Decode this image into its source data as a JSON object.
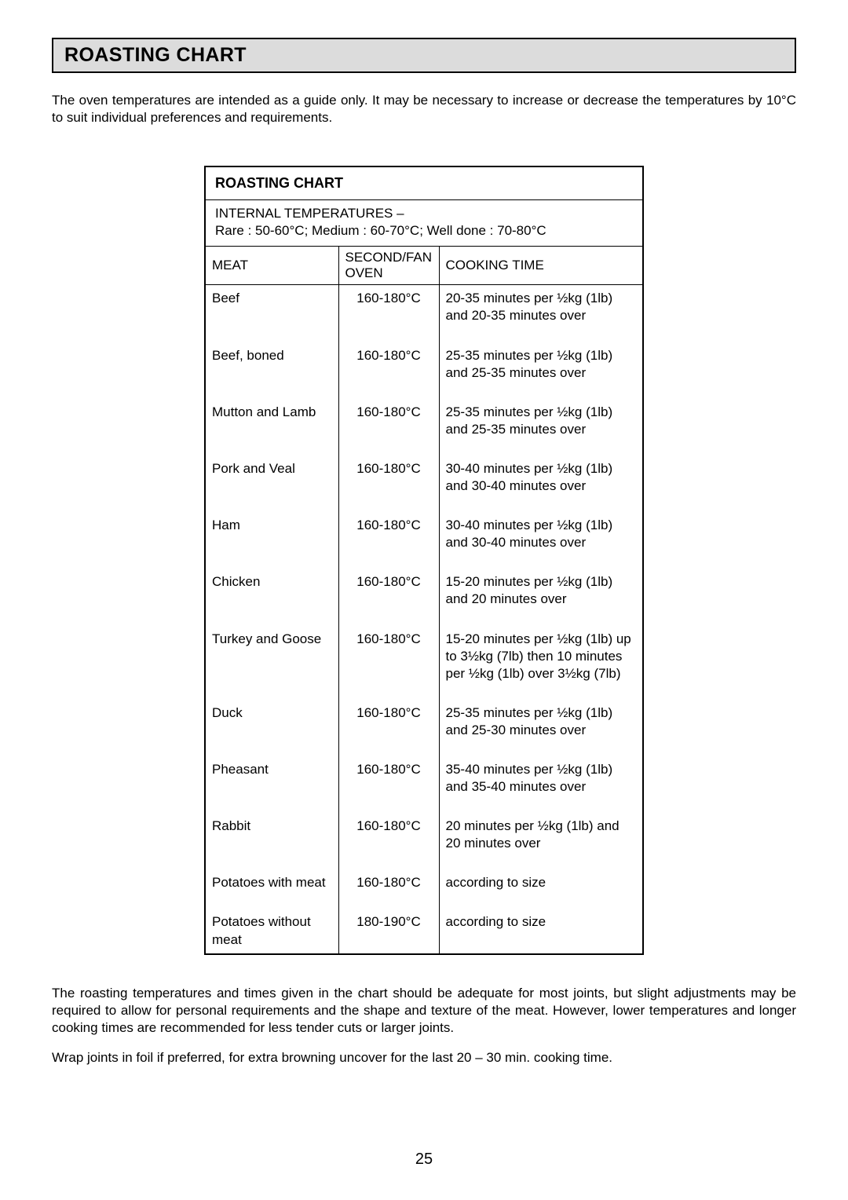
{
  "title": "ROASTING CHART",
  "intro": "The oven temperatures are intended as a guide only. It may be necessary to increase or decrease the temperatures by 10°C to suit individual preferences and requirements.",
  "table": {
    "heading": "ROASTING CHART",
    "subheading_line1": "INTERNAL TEMPERATURES –",
    "subheading_line2": "Rare : 50-60°C; Medium : 60-70°C; Well done : 70-80°C",
    "columns": {
      "meat": "MEAT",
      "oven": "SECOND/FAN OVEN",
      "time": "COOKING TIME"
    },
    "rows": [
      {
        "meat": "Beef",
        "oven": "160-180°C",
        "time": "20-35 minutes per ½kg (1lb) and 20-35 minutes over"
      },
      {
        "meat": "Beef, boned",
        "oven": "160-180°C",
        "time": "25-35 minutes per ½kg (1lb) and 25-35 minutes over"
      },
      {
        "meat": "Mutton and Lamb",
        "oven": "160-180°C",
        "time": "25-35 minutes per ½kg (1lb) and 25-35 minutes over"
      },
      {
        "meat": "Pork and Veal",
        "oven": "160-180°C",
        "time": "30-40 minutes per ½kg (1lb) and 30-40 minutes over"
      },
      {
        "meat": "Ham",
        "oven": "160-180°C",
        "time": "30-40 minutes per ½kg (1lb) and 30-40 minutes over"
      },
      {
        "meat": "Chicken",
        "oven": "160-180°C",
        "time": "15-20 minutes per ½kg (1lb) and 20 minutes over"
      },
      {
        "meat": "Turkey and Goose",
        "oven": "160-180°C",
        "time": "15-20 minutes per ½kg (1lb) up to 3½kg (7lb) then 10 minutes per ½kg (1lb) over  3½kg (7lb)"
      },
      {
        "meat": "Duck",
        "oven": "160-180°C",
        "time": "25-35 minutes per ½kg (1lb) and 25-30 minutes over"
      },
      {
        "meat": "Pheasant",
        "oven": "160-180°C",
        "time": "35-40 minutes per ½kg (1lb) and 35-40 minutes over"
      },
      {
        "meat": "Rabbit",
        "oven": "160-180°C",
        "time": "20 minutes per ½kg (1lb) and 20 minutes over"
      },
      {
        "meat": "Potatoes with meat",
        "oven": "160-180°C",
        "time": "according to size"
      },
      {
        "meat": "Potatoes without meat",
        "oven": "180-190°C",
        "time": "according to size"
      }
    ]
  },
  "notes": {
    "p1": "The roasting temperatures and times given in the chart should be adequate for most joints, but slight adjustments may be required to allow for personal requirements and the shape and texture of the meat.  However, lower temperatures and longer cooking times are recommended for less tender cuts or larger joints.",
    "p2": "Wrap joints in foil if preferred, for extra browning uncover for the last 20 – 30 min. cooking time."
  },
  "page_number": "25",
  "styling": {
    "page_bg": "#ffffff",
    "banner_bg": "#dcdcdc",
    "border_color": "#000000",
    "font_family": "Arial",
    "body_font_size_pt": 12,
    "title_font_size_pt": 18
  }
}
